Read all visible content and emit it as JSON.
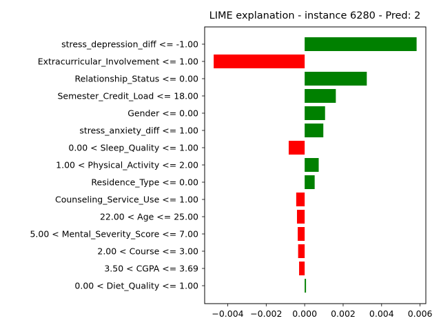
{
  "chart_data": {
    "type": "bar",
    "orientation": "horizontal",
    "title": "LIME explanation - instance 6280 - Pred: 2",
    "xlabel": "",
    "ylabel": "",
    "xlim": [
      -0.0052,
      0.0063
    ],
    "xticks": [
      -0.004,
      -0.002,
      0.0,
      0.002,
      0.004,
      0.006
    ],
    "xtick_labels": [
      "−0.004",
      "−0.002",
      "0.000",
      "0.002",
      "0.004",
      "0.006"
    ],
    "grid": false,
    "legend": "none",
    "positive_color": "#008000",
    "negative_color": "#ff0000",
    "categories": [
      "stress_depression_diff <= -1.00",
      "Extracurricular_Involvement <= 1.00",
      "Relationship_Status <= 0.00",
      "Semester_Credit_Load <= 18.00",
      "Gender <= 0.00",
      "stress_anxiety_diff <= 1.00",
      "0.00 < Sleep_Quality <= 1.00",
      "1.00 < Physical_Activity <= 2.00",
      "Residence_Type <= 0.00",
      "Counseling_Service_Use <= 1.00",
      "22.00 < Age <= 25.00",
      "5.00 < Mental_Severity_Score <= 7.00",
      "2.00 < Course <= 3.00",
      "3.50 < CGPA <= 3.69",
      "0.00 < Diet_Quality <= 1.00"
    ],
    "values": [
      0.00582,
      -0.00473,
      0.00323,
      0.00162,
      0.00106,
      0.00097,
      -0.00083,
      0.00073,
      0.00052,
      -0.00044,
      -0.0004,
      -0.00036,
      -0.00034,
      -0.00029,
      7e-05
    ]
  }
}
